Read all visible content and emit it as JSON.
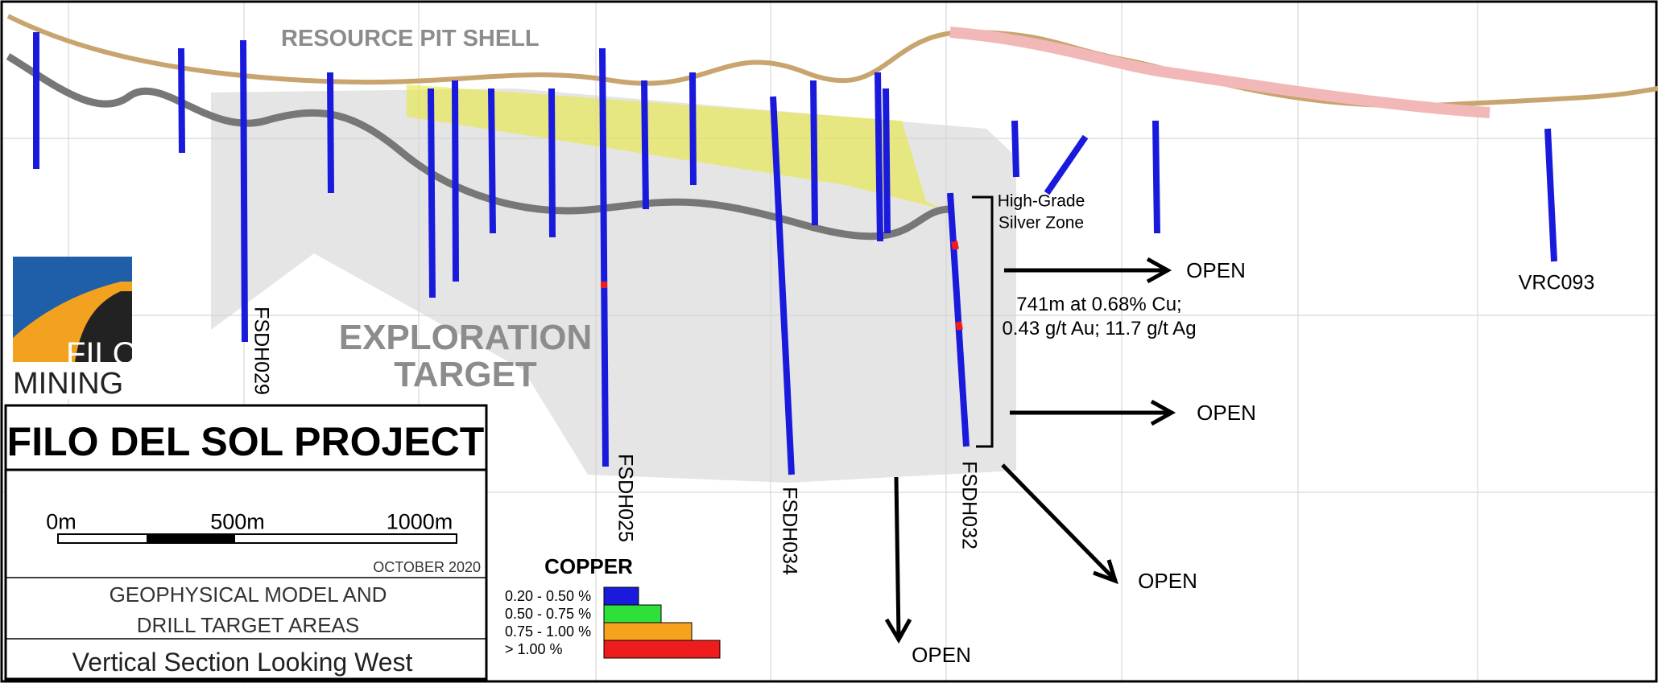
{
  "labels": {
    "pit_shell": "RESOURCE PIT SHELL",
    "exploration_target": [
      "EXPLORATION",
      "TARGET"
    ],
    "silver_zone": [
      "High-Grade",
      "Silver Zone"
    ],
    "intercept": [
      "741m at 0.68% Cu;",
      "0.43 g/t Au; 11.7 g/t Ag"
    ]
  },
  "open_labels": [
    "OPEN",
    "OPEN",
    "OPEN",
    "OPEN"
  ],
  "holes": [
    "FSDH029",
    "FSDH025",
    "FSDH034",
    "FSDH032",
    "VRC093"
  ],
  "logo": {
    "top": "FILO",
    "bottom": "MINING"
  },
  "title_block": {
    "title": "FILO DEL SOL PROJECT",
    "scale": [
      "0m",
      "500m",
      "1000m"
    ],
    "date": "OCTOBER 2020",
    "subtitle": [
      "GEOPHYSICAL MODEL AND",
      "DRILL TARGET AREAS"
    ],
    "view": "Vertical Section Looking West"
  },
  "legend": {
    "title": "COPPER",
    "items": [
      {
        "label": "0.20 - 0.50 %",
        "color": "#1a1adc"
      },
      {
        "label": "0.50 - 0.75 %",
        "color": "#2ee03a"
      },
      {
        "label": "0.75 - 1.00 %",
        "color": "#f7a21c"
      },
      {
        "label": "> 1.00 %",
        "color": "#ee1c1c"
      }
    ]
  }
}
